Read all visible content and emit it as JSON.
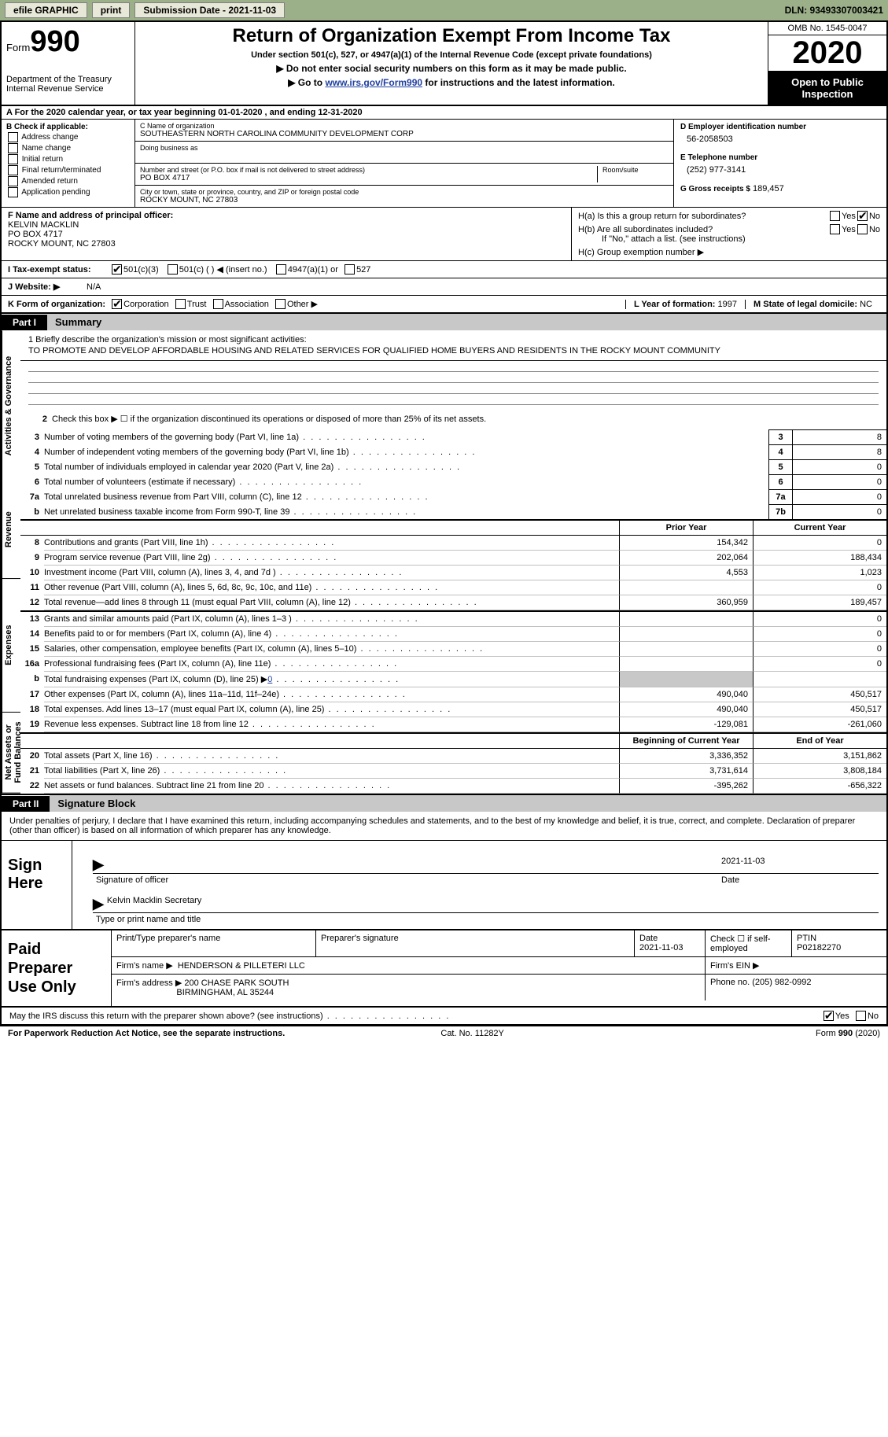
{
  "topbar": {
    "efile_label": "efile GRAPHIC",
    "print_label": "print",
    "submission_label": "Submission Date - 2021-11-03",
    "dln_label": "DLN: 93493307003421"
  },
  "header": {
    "form_word": "Form",
    "form_num": "990",
    "dept": "Department of the Treasury\nInternal Revenue Service",
    "title": "Return of Organization Exempt From Income Tax",
    "sub1": "Under section 501(c), 527, or 4947(a)(1) of the Internal Revenue Code (except private foundations)",
    "sub2_a": "▶ Do not enter social security numbers on this form as it may be made public.",
    "sub2_b_pre": "▶ Go to ",
    "sub2_b_link": "www.irs.gov/Form990",
    "sub2_b_post": " for instructions and the latest information.",
    "omb": "OMB No. 1545-0047",
    "year": "2020",
    "open": "Open to Public Inspection"
  },
  "a_row": "A For the 2020 calendar year, or tax year beginning 01-01-2020    , and ending 12-31-2020",
  "box_b": {
    "title": "B Check if applicable:",
    "opts": [
      "Address change",
      "Name change",
      "Initial return",
      "Final return/terminated",
      "Amended return",
      "Application pending"
    ]
  },
  "box_c": {
    "lbl_name": "C Name of organization",
    "name": "SOUTHEASTERN NORTH CAROLINA COMMUNITY DEVELOPMENT CORP",
    "lbl_dba": "Doing business as",
    "lbl_street": "Number and street (or P.O. box if mail is not delivered to street address)",
    "lbl_room": "Room/suite",
    "street": "PO BOX 4717",
    "lbl_city": "City or town, state or province, country, and ZIP or foreign postal code",
    "city": "ROCKY MOUNT, NC  27803"
  },
  "box_d": {
    "lbl_ein": "D Employer identification number",
    "ein": "56-2058503",
    "lbl_phone": "E Telephone number",
    "phone": "(252) 977-3141",
    "lbl_gross": "G Gross receipts $",
    "gross": "189,457"
  },
  "box_f": {
    "lbl": "F Name and address of principal officer:",
    "line1": "KELVIN MACKLIN",
    "line2": "PO BOX 4717",
    "line3": "ROCKY MOUNT, NC  27803"
  },
  "box_h": {
    "ha": "H(a)  Is this a group return for subordinates?",
    "hb": "H(b)  Are all subordinates included?",
    "hb_note": "If \"No,\" attach a list. (see instructions)",
    "hc": "H(c)  Group exemption number ▶",
    "yes": "Yes",
    "no": "No"
  },
  "status": {
    "lbl": "I   Tax-exempt status:",
    "o1": "501(c)(3)",
    "o2": "501(c) (  ) ◀ (insert no.)",
    "o3": "4947(a)(1) or",
    "o4": "527"
  },
  "website": {
    "lbl": "J   Website: ▶",
    "val": "N/A"
  },
  "korg": {
    "lbl": "K Form of organization:",
    "o1": "Corporation",
    "o2": "Trust",
    "o3": "Association",
    "o4": "Other ▶",
    "l_lbl": "L Year of formation:",
    "l_val": "1997",
    "m_lbl": "M State of legal domicile:",
    "m_val": "NC"
  },
  "parts": {
    "p1": "Part I",
    "p1_title": "Summary",
    "p2": "Part II",
    "p2_title": "Signature Block"
  },
  "vtabs": {
    "ag": "Activities & Governance",
    "rev": "Revenue",
    "exp": "Expenses",
    "na": "Net Assets or Fund Balances"
  },
  "mission": {
    "lbl": "1  Briefly describe the organization's mission or most significant activities:",
    "text": "TO PROMOTE AND DEVELOP AFFORDABLE HOUSING AND RELATED SERVICES FOR QUALIFIED HOME BUYERS AND RESIDENTS IN THE ROCKY MOUNT COMMUNITY"
  },
  "gov_lines": {
    "l2": "Check this box ▶ ☐  if the organization discontinued its operations or disposed of more than 25% of its net assets.",
    "items": [
      {
        "n": "3",
        "t": "Number of voting members of the governing body (Part VI, line 1a)",
        "box": "3",
        "v": "8"
      },
      {
        "n": "4",
        "t": "Number of independent voting members of the governing body (Part VI, line 1b)",
        "box": "4",
        "v": "8"
      },
      {
        "n": "5",
        "t": "Total number of individuals employed in calendar year 2020 (Part V, line 2a)",
        "box": "5",
        "v": "0"
      },
      {
        "n": "6",
        "t": "Total number of volunteers (estimate if necessary)",
        "box": "6",
        "v": "0"
      },
      {
        "n": "7a",
        "t": "Total unrelated business revenue from Part VIII, column (C), line 12",
        "box": "7a",
        "v": "0"
      },
      {
        "n": "b",
        "t": "Net unrelated business taxable income from Form 990-T, line 39",
        "box": "7b",
        "v": "0"
      }
    ]
  },
  "col_headers": {
    "prior": "Prior Year",
    "current": "Current Year",
    "bcy": "Beginning of Current Year",
    "eoy": "End of Year"
  },
  "rev_lines": [
    {
      "n": "8",
      "t": "Contributions and grants (Part VIII, line 1h)",
      "p": "154,342",
      "c": "0"
    },
    {
      "n": "9",
      "t": "Program service revenue (Part VIII, line 2g)",
      "p": "202,064",
      "c": "188,434"
    },
    {
      "n": "10",
      "t": "Investment income (Part VIII, column (A), lines 3, 4, and 7d )",
      "p": "4,553",
      "c": "1,023"
    },
    {
      "n": "11",
      "t": "Other revenue (Part VIII, column (A), lines 5, 6d, 8c, 9c, 10c, and 11e)",
      "p": "",
      "c": "0"
    },
    {
      "n": "12",
      "t": "Total revenue—add lines 8 through 11 (must equal Part VIII, column (A), line 12)",
      "p": "360,959",
      "c": "189,457"
    }
  ],
  "exp_lines": [
    {
      "n": "13",
      "t": "Grants and similar amounts paid (Part IX, column (A), lines 1–3 )",
      "p": "",
      "c": "0"
    },
    {
      "n": "14",
      "t": "Benefits paid to or for members (Part IX, column (A), line 4)",
      "p": "",
      "c": "0"
    },
    {
      "n": "15",
      "t": "Salaries, other compensation, employee benefits (Part IX, column (A), lines 5–10)",
      "p": "",
      "c": "0"
    },
    {
      "n": "16a",
      "t": "Professional fundraising fees (Part IX, column (A), line 11e)",
      "p": "",
      "c": "0"
    },
    {
      "n": "b",
      "t": "Total fundraising expenses (Part IX, column (D), line 25) ▶",
      "p": "shade",
      "c": "shade",
      "link": "0"
    },
    {
      "n": "17",
      "t": "Other expenses (Part IX, column (A), lines 11a–11d, 11f–24e)",
      "p": "490,040",
      "c": "450,517"
    },
    {
      "n": "18",
      "t": "Total expenses. Add lines 13–17 (must equal Part IX, column (A), line 25)",
      "p": "490,040",
      "c": "450,517"
    },
    {
      "n": "19",
      "t": "Revenue less expenses. Subtract line 18 from line 12",
      "p": "-129,081",
      "c": "-261,060"
    }
  ],
  "na_lines": [
    {
      "n": "20",
      "t": "Total assets (Part X, line 16)",
      "p": "3,336,352",
      "c": "3,151,862"
    },
    {
      "n": "21",
      "t": "Total liabilities (Part X, line 26)",
      "p": "3,731,614",
      "c": "3,808,184"
    },
    {
      "n": "22",
      "t": "Net assets or fund balances. Subtract line 21 from line 20",
      "p": "-395,262",
      "c": "-656,322"
    }
  ],
  "sig": {
    "intro": "Under penalties of perjury, I declare that I have examined this return, including accompanying schedules and statements, and to the best of my knowledge and belief, it is true, correct, and complete. Declaration of preparer (other than officer) is based on all information of which preparer has any knowledge.",
    "sign_here": "Sign Here",
    "sig_label": "Signature of officer",
    "date_label": "Date",
    "date_val": "2021-11-03",
    "name_type": "Kelvin Macklin  Secretary",
    "name_lbl": "Type or print name and title"
  },
  "prep": {
    "label": "Paid Preparer Use Only",
    "h1": "Print/Type preparer's name",
    "h2": "Preparer's signature",
    "h3": "Date",
    "h3v": "2021-11-03",
    "h4": "Check ☐ if self-employed",
    "h5": "PTIN",
    "h5v": "P02182270",
    "firm_lbl": "Firm's name    ▶",
    "firm": "HENDERSON & PILLETERI LLC",
    "ein_lbl": "Firm's EIN ▶",
    "addr_lbl": "Firm's address ▶",
    "addr1": "200 CHASE PARK SOUTH",
    "addr2": "BIRMINGHAM, AL  35244",
    "phone_lbl": "Phone no.",
    "phone": "(205) 982-0992"
  },
  "discuss": {
    "text": "May the IRS discuss this return with the preparer shown above? (see instructions)",
    "yes": "Yes",
    "no": "No"
  },
  "footer": {
    "left": "For Paperwork Reduction Act Notice, see the separate instructions.",
    "mid": "Cat. No. 11282Y",
    "right": "Form 990 (2020)"
  }
}
